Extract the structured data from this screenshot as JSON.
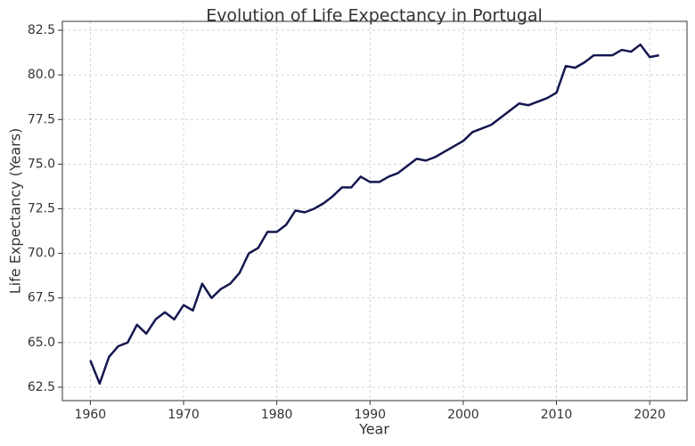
{
  "chart_data": {
    "type": "line",
    "title": "Evolution of Life Expectancy in Portugal",
    "x_label": "Year",
    "y_label": "Life Expectancy (Years)",
    "x": [
      1960,
      1961,
      1962,
      1963,
      1964,
      1965,
      1966,
      1967,
      1968,
      1969,
      1970,
      1971,
      1972,
      1973,
      1974,
      1975,
      1976,
      1977,
      1978,
      1979,
      1980,
      1981,
      1982,
      1983,
      1984,
      1985,
      1986,
      1987,
      1988,
      1989,
      1990,
      1991,
      1992,
      1993,
      1994,
      1995,
      1996,
      1997,
      1998,
      1999,
      2000,
      2001,
      2002,
      2003,
      2004,
      2005,
      2006,
      2007,
      2008,
      2009,
      2010,
      2011,
      2012,
      2013,
      2014,
      2015,
      2016,
      2017,
      2018,
      2019,
      2020,
      2021
    ],
    "values": [
      64.0,
      62.7,
      64.2,
      64.8,
      65.0,
      66.0,
      65.5,
      66.3,
      66.7,
      66.3,
      67.1,
      66.8,
      68.3,
      67.5,
      68.0,
      68.3,
      68.9,
      70.0,
      70.3,
      71.2,
      71.2,
      71.6,
      72.4,
      72.3,
      72.5,
      72.8,
      73.2,
      73.7,
      73.7,
      74.3,
      74.0,
      74.0,
      74.3,
      74.5,
      74.9,
      75.3,
      75.2,
      75.4,
      75.7,
      76.0,
      76.3,
      76.8,
      77.0,
      77.2,
      77.6,
      78.0,
      78.4,
      78.3,
      78.5,
      78.7,
      79.0,
      80.5,
      80.4,
      80.7,
      81.1,
      81.1,
      81.1,
      81.4,
      81.3,
      81.7,
      81.0,
      81.1
    ],
    "color": "#14174f",
    "xlim": [
      1957,
      2024
    ],
    "xticks": [
      1960,
      1970,
      1980,
      1990,
      2000,
      2010,
      2020
    ],
    "ylim": [
      61.75,
      83.0
    ],
    "yticks": [
      62.5,
      {
        "value": 65,
        "label": "65.0"
      },
      67.5,
      {
        "value": 70,
        "label": "70.0"
      },
      72.5,
      {
        "value": 75,
        "label": "75.0"
      },
      77.5,
      {
        "value": 80,
        "label": "80.0"
      },
      82.5
    ],
    "grid": true
  }
}
